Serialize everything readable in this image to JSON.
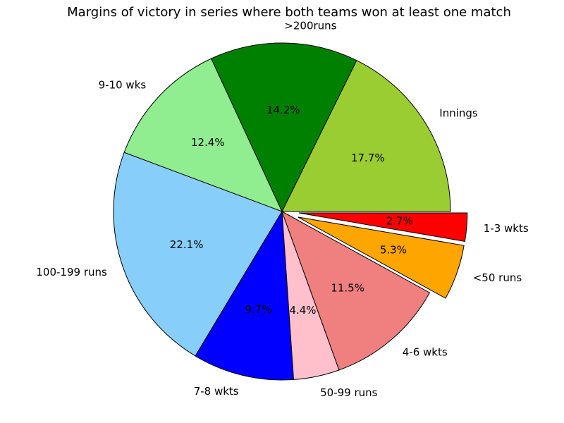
{
  "chart_data": {
    "type": "pie",
    "title": "Margins of victory in series where both teams won at least one match",
    "categories": [
      "Innings",
      ">200runs",
      "9-10 wks",
      "100-199 runs",
      "7-8 wkts",
      "50-99 runs",
      "4-6 wkts",
      "<50 runs",
      "1-3 wkts"
    ],
    "values": [
      17.7,
      14.2,
      12.4,
      22.1,
      9.7,
      4.4,
      11.5,
      5.3,
      2.7
    ],
    "value_labels": [
      "17.7%",
      "14.2%",
      "12.4%",
      "22.1%",
      "9.7%",
      "4.4%",
      "11.5%",
      "5.3%",
      "2.7%"
    ],
    "colors": [
      "#9acd32",
      "#008000",
      "#90ee90",
      "#87cefa",
      "#0000ff",
      "#ffc0cb",
      "#f08080",
      "#ffa500",
      "#ff0000"
    ],
    "explode": [
      0,
      0,
      0,
      0,
      0,
      0,
      0,
      0.1,
      0.1
    ]
  }
}
